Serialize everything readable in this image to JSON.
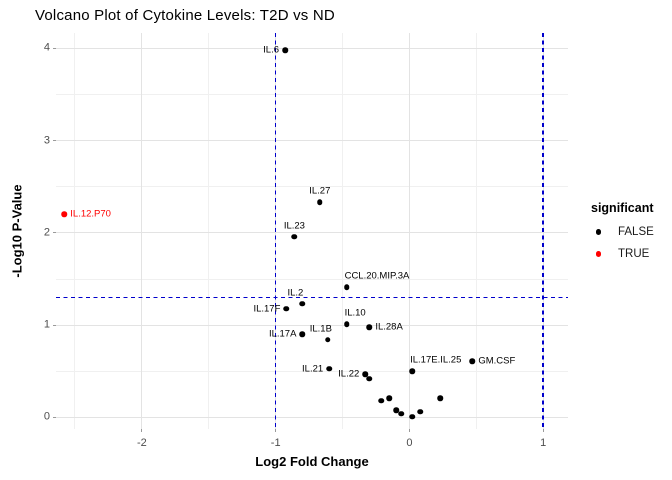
{
  "chart_data": {
    "type": "scatter",
    "title": "Volcano Plot of Cytokine Levels: T2D vs ND",
    "xlabel": "Log2 Fold Change",
    "ylabel": "-Log10 P-Value",
    "xlim": [
      -2.642,
      1.185
    ],
    "ylim": [
      -0.125,
      4.166
    ],
    "x_ticks": [
      -2,
      -1,
      0,
      1
    ],
    "y_ticks": [
      0,
      1,
      2,
      3,
      4
    ],
    "minor_step": 0.5,
    "grid": true,
    "thresholds": {
      "vlines": [
        -1,
        1
      ],
      "hline": 1.301,
      "color": "#0000cc",
      "style": "dashed"
    },
    "legend": {
      "title": "significant",
      "position": "right",
      "entries": [
        {
          "label": "FALSE",
          "color": "#000000"
        },
        {
          "label": "TRUE",
          "color": "#ff0000"
        }
      ]
    },
    "points": [
      {
        "name": "IL.6",
        "x": -0.93,
        "y": 3.98,
        "significant": false,
        "label": "left"
      },
      {
        "name": "IL.12.P70",
        "x": -2.58,
        "y": 2.2,
        "significant": true,
        "label": "right"
      },
      {
        "name": "IL.27",
        "x": -0.67,
        "y": 2.33,
        "significant": false,
        "label": "above"
      },
      {
        "name": "IL.23",
        "x": -0.86,
        "y": 1.96,
        "significant": false,
        "label": "above"
      },
      {
        "name": "CCL.20.MIP.3A",
        "x": -0.47,
        "y": 1.41,
        "significant": false,
        "label": "above-right"
      },
      {
        "name": "IL.2",
        "x": -0.8,
        "y": 1.23,
        "significant": false,
        "label": "above-left"
      },
      {
        "name": "IL.17F",
        "x": -0.92,
        "y": 1.18,
        "significant": false,
        "label": "left"
      },
      {
        "name": "IL.10",
        "x": -0.47,
        "y": 1.01,
        "significant": false,
        "label": "above-right"
      },
      {
        "name": "IL.28A",
        "x": -0.3,
        "y": 0.98,
        "significant": false,
        "label": "right"
      },
      {
        "name": "IL.17A",
        "x": -0.8,
        "y": 0.9,
        "significant": false,
        "label": "left"
      },
      {
        "name": "IL.1B",
        "x": -0.61,
        "y": 0.84,
        "significant": false,
        "label": "above-left"
      },
      {
        "name": "IL.21",
        "x": -0.6,
        "y": 0.53,
        "significant": false,
        "label": "left"
      },
      {
        "name": "IL.22",
        "x": -0.33,
        "y": 0.47,
        "significant": false,
        "label": "left"
      },
      {
        "name": "IL.17E.IL.25",
        "x": 0.02,
        "y": 0.5,
        "significant": false,
        "label": "above-right"
      },
      {
        "name": "GM.CSF",
        "x": 0.47,
        "y": 0.61,
        "significant": false,
        "label": "right"
      },
      {
        "name": "",
        "x": -0.3,
        "y": 0.42,
        "significant": false,
        "label": "none"
      },
      {
        "name": "",
        "x": -0.21,
        "y": 0.18,
        "significant": false,
        "label": "none"
      },
      {
        "name": "",
        "x": -0.15,
        "y": 0.21,
        "significant": false,
        "label": "none"
      },
      {
        "name": "",
        "x": -0.1,
        "y": 0.08,
        "significant": false,
        "label": "none"
      },
      {
        "name": "",
        "x": -0.06,
        "y": 0.04,
        "significant": false,
        "label": "none"
      },
      {
        "name": "",
        "x": 0.02,
        "y": 0.01,
        "significant": false,
        "label": "none"
      },
      {
        "name": "",
        "x": 0.08,
        "y": 0.06,
        "significant": false,
        "label": "none"
      },
      {
        "name": "",
        "x": 0.23,
        "y": 0.21,
        "significant": false,
        "label": "none"
      }
    ],
    "colors": {
      "point": "#000000",
      "significant_point": "#ff0000",
      "threshold_line": "#0000cc",
      "tick_text": "#4d4d4d",
      "grid_major": "#e3e3e3",
      "grid_minor": "#f0f0f0"
    }
  }
}
